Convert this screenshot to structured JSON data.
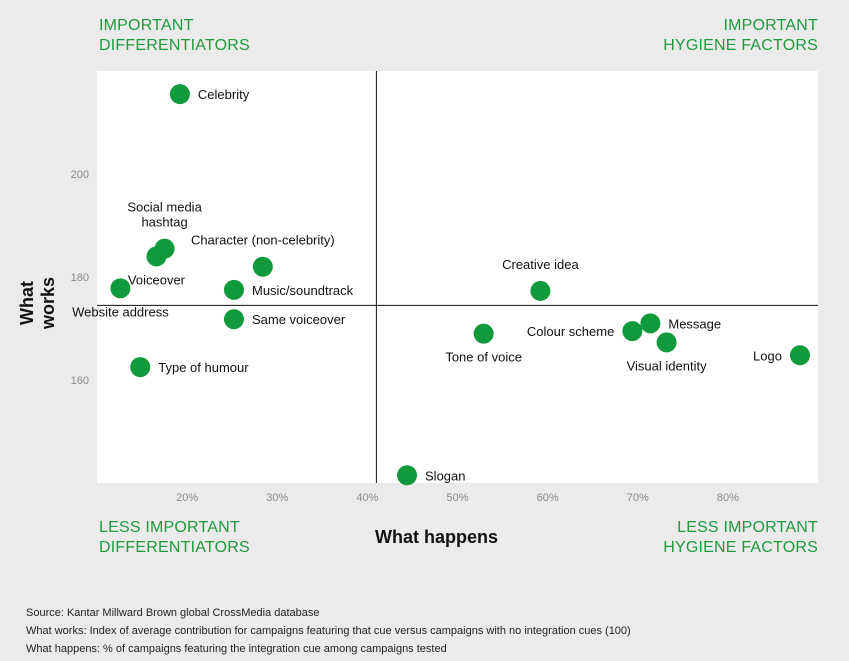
{
  "quadrants": {
    "top_left": [
      "IMPORTANT",
      "DIFFERENTIATORS"
    ],
    "top_right": [
      "IMPORTANT",
      "HYGIENE FACTORS"
    ],
    "bottom_left": [
      "LESS IMPORTANT",
      "DIFFERENTIATORS"
    ],
    "bottom_right": [
      "LESS IMPORTANT",
      "HYGIENE FACTORS"
    ]
  },
  "notes": {
    "source": "Source: Kantar Millward Brown global CrossMedia database",
    "works": "What works:  Index of average contribution for campaigns featuring that cue versus campaigns with no integration cues (100)",
    "happens": "What happens: % of campaigns featuring the integration cue among campaigns tested"
  },
  "colors": {
    "point": "#109a3c",
    "quadrant_text": "#1e9a3c",
    "plot_bg": "#ffffff",
    "page_bg": "#ebebeb",
    "axis": "#111111",
    "tick": "#8a8a8a"
  },
  "chart_data": {
    "type": "scatter",
    "xlabel": "What happens",
    "ylabel": "What works",
    "xlim": [
      10,
      90
    ],
    "ylim": [
      140,
      220
    ],
    "x_ticks": [
      20,
      30,
      40,
      50,
      60,
      70,
      80
    ],
    "x_tick_labels": [
      "20%",
      "30%",
      "40%",
      "50%",
      "60%",
      "70%",
      "80%"
    ],
    "y_ticks": [
      160,
      180,
      200
    ],
    "y_tick_labels": [
      "160",
      "180",
      "200"
    ],
    "divider": {
      "x": 41,
      "y": 174.5
    },
    "grid": false,
    "points": [
      {
        "label": "Celebrity",
        "x": 19.2,
        "y": 215.5,
        "label_pos": "right"
      },
      {
        "label": "Social media hashtag",
        "x": 17.5,
        "y": 185.5,
        "label_pos": "above"
      },
      {
        "label": "Voiceover",
        "x": 16.6,
        "y": 184,
        "label_pos": "below"
      },
      {
        "label": "Character (non-celebrity)",
        "x": 28.4,
        "y": 182,
        "label_pos": "above"
      },
      {
        "label": "Website address",
        "x": 12.6,
        "y": 177.8,
        "label_pos": "below"
      },
      {
        "label": "Music/soundtrack",
        "x": 25.2,
        "y": 177.5,
        "label_pos": "right"
      },
      {
        "label": "Same voiceover",
        "x": 25.2,
        "y": 171.8,
        "label_pos": "right"
      },
      {
        "label": "Type of humour",
        "x": 14.8,
        "y": 162.5,
        "label_pos": "right"
      },
      {
        "label": "Slogan",
        "x": 44.4,
        "y": 141.5,
        "label_pos": "right"
      },
      {
        "label": "Creative idea",
        "x": 59.2,
        "y": 177.3,
        "label_pos": "above"
      },
      {
        "label": "Tone of voice",
        "x": 52.9,
        "y": 169,
        "label_pos": "below"
      },
      {
        "label": "Colour scheme",
        "x": 69.4,
        "y": 169.5,
        "label_pos": "left"
      },
      {
        "label": "Message",
        "x": 71.4,
        "y": 171,
        "label_pos": "right"
      },
      {
        "label": "Visual identity",
        "x": 73.2,
        "y": 167.3,
        "label_pos": "below"
      },
      {
        "label": "Logo",
        "x": 88,
        "y": 164.8,
        "label_pos": "left"
      }
    ]
  }
}
